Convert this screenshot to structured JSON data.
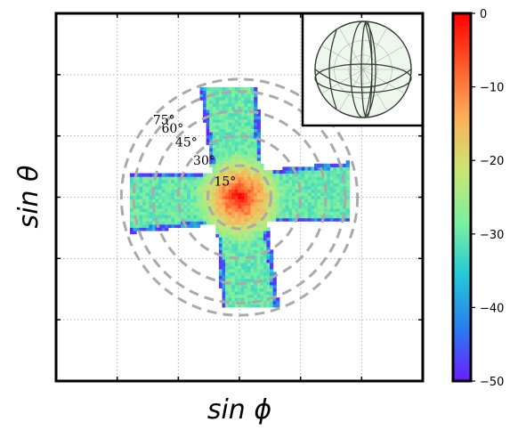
{
  "chart_data": {
    "type": "heatmap",
    "title": "",
    "xlabel": "sin ϕ",
    "ylabel": "sin θ",
    "xlim": [
      -1.5,
      1.5
    ],
    "ylim": [
      -1.5,
      1.5
    ],
    "grid": true,
    "grid_ticks": [
      -1.0,
      -0.5,
      0.0,
      0.5,
      1.0
    ],
    "colormap": "rainbow",
    "colorbar": {
      "range": [
        -50,
        0
      ],
      "ticks": [
        0,
        -10,
        -20,
        -30,
        -40,
        -50
      ],
      "tick_labels": [
        "0",
        "−10",
        "−20",
        "−30",
        "−40",
        "−50"
      ],
      "colors": [
        "#6a1dff",
        "#2a7cf0",
        "#22c8d8",
        "#7af0a0",
        "#c9e673",
        "#fdb05a",
        "#ff5a2c",
        "#ff0000"
      ]
    },
    "rings": [
      {
        "angle_deg": 15,
        "label": "15°"
      },
      {
        "angle_deg": 30,
        "label": "30°"
      },
      {
        "angle_deg": 45,
        "label": "45°"
      },
      {
        "angle_deg": 60,
        "label": "60°"
      },
      {
        "angle_deg": 75,
        "label": "75°"
      }
    ],
    "ring_color": "#aaaaaa",
    "cross": {
      "horizontal_arm": {
        "x_range": [
          -0.9,
          0.9
        ],
        "half_width": 0.2,
        "outer_tilt": 0.05
      },
      "vertical_arm": {
        "y_range": [
          -0.9,
          0.9
        ],
        "half_width": 0.2,
        "outer_tilt": 0.1
      },
      "center_value": 0,
      "edge_value": -30
    },
    "inset": {
      "type": "stereonet",
      "background": "#eef6ee",
      "line_color": "#2f3b2f"
    }
  }
}
